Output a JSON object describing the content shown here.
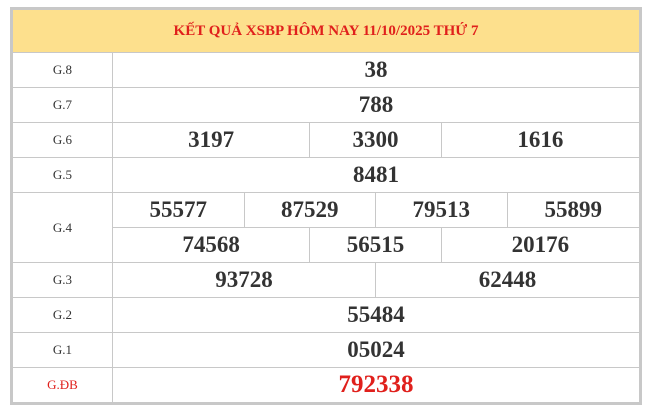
{
  "title": "KẾT QUẢ XSBP HÔM NAY 11/10/2025 THỨ 7",
  "prizes": {
    "g8": {
      "label": "G.8",
      "values": [
        "38"
      ]
    },
    "g7": {
      "label": "G.7",
      "values": [
        "788"
      ]
    },
    "g6": {
      "label": "G.6",
      "values": [
        "3197",
        "3300",
        "1616"
      ]
    },
    "g5": {
      "label": "G.5",
      "values": [
        "8481"
      ]
    },
    "g4": {
      "label": "G.4",
      "values": [
        "55577",
        "87529",
        "79513",
        "55899",
        "74568",
        "56515",
        "20176"
      ]
    },
    "g3": {
      "label": "G.3",
      "values": [
        "93728",
        "62448"
      ]
    },
    "g2": {
      "label": "G.2",
      "values": [
        "55484"
      ]
    },
    "g1": {
      "label": "G.1",
      "values": [
        "05024"
      ]
    },
    "gdb": {
      "label": "G.ĐB",
      "values": [
        "792338"
      ]
    }
  },
  "colors": {
    "header_bg": "#fde08d",
    "accent": "#e0201c",
    "border": "#c8c8c8"
  }
}
